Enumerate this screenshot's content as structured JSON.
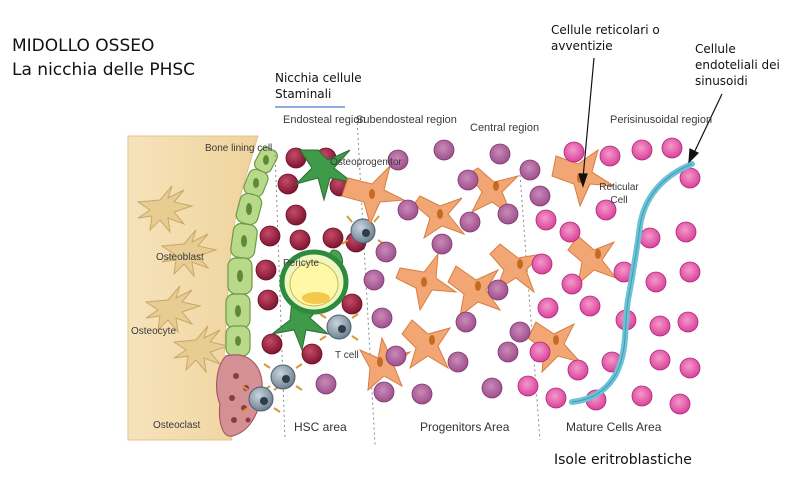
{
  "title": {
    "line1": "MIDOLLO OSSEO",
    "line2": "La nicchia delle PHSC"
  },
  "annotations": {
    "stem_niche": "Nicchia cellule Staminali",
    "reticular_cells": "Cellule reticolari o avventizie",
    "endothelial_cells": "Cellule endoteliali dei sinusoidi",
    "erythroblastic_islands": "Isole eritroblastiche"
  },
  "regions": {
    "endosteal": "Endosteal region",
    "subendosteal": "Subendosteal region",
    "central": "Central region",
    "perisinusoidal": "Perisinusoidal region"
  },
  "cells": {
    "bone_lining": "Bone lining cell",
    "osteoprogenitor": "Osteoprogenitor",
    "osteoblast": "Osteoblast",
    "pericyte": "Pericyte",
    "osteocyte": "Osteocyte",
    "t_cell": "T cell",
    "osteoclast": "Osteoclast",
    "reticular": "Reticular Cell"
  },
  "areas": {
    "hsc": "HSC area",
    "progenitors": "Progenitors Area",
    "mature": "Mature Cells Area"
  },
  "colors": {
    "bone": "#f3dcae",
    "lining_cell": "#b8d98a",
    "osteoclast": "#d08a8f",
    "rbc_dark": "#9b1f3d",
    "stromal_green": "#3f9a4a",
    "hsc": "#8e9fae",
    "reticular_cell": "#f2a673",
    "progenitor": "#b45a9a",
    "mature": "#d9349a",
    "sinusoid": "#6cc3d6"
  }
}
